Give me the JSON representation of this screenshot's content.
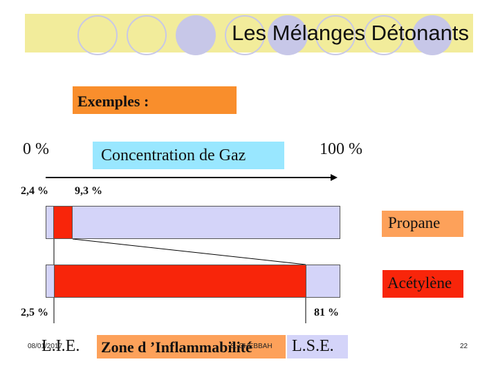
{
  "slide": {
    "title": "Les Mélanges Détonants",
    "examples_label": "Exemples :",
    "scale": {
      "start_label": "0 %",
      "end_label": "100 %",
      "axis_label": "Concentration de Gaz"
    },
    "propane": {
      "name": "Propane",
      "lie_label": "2,4 %",
      "lse_label": "9,3 %",
      "lie_percent": 2.4,
      "lse_percent": 9.3
    },
    "acetylene": {
      "name": "Acétylène",
      "lie_label": "2,5 %",
      "lse_label": "81 %",
      "lie_percent": 2.5,
      "lse_percent": 81
    },
    "footer": {
      "lie": "L.I.E.",
      "zone": "Zone d ’Inflammabilité",
      "lse": "L.S.E.",
      "date": "08/01/2017",
      "author": "S. CHEBBAH",
      "page_number": "22"
    },
    "colors": {
      "title_band": "#f2ec9b",
      "flammable_zone": "#f8250a",
      "bar_background": "#d4d4f9",
      "label_orange": "#f98e2c",
      "axis_label_bg": "#99e7ff"
    }
  }
}
